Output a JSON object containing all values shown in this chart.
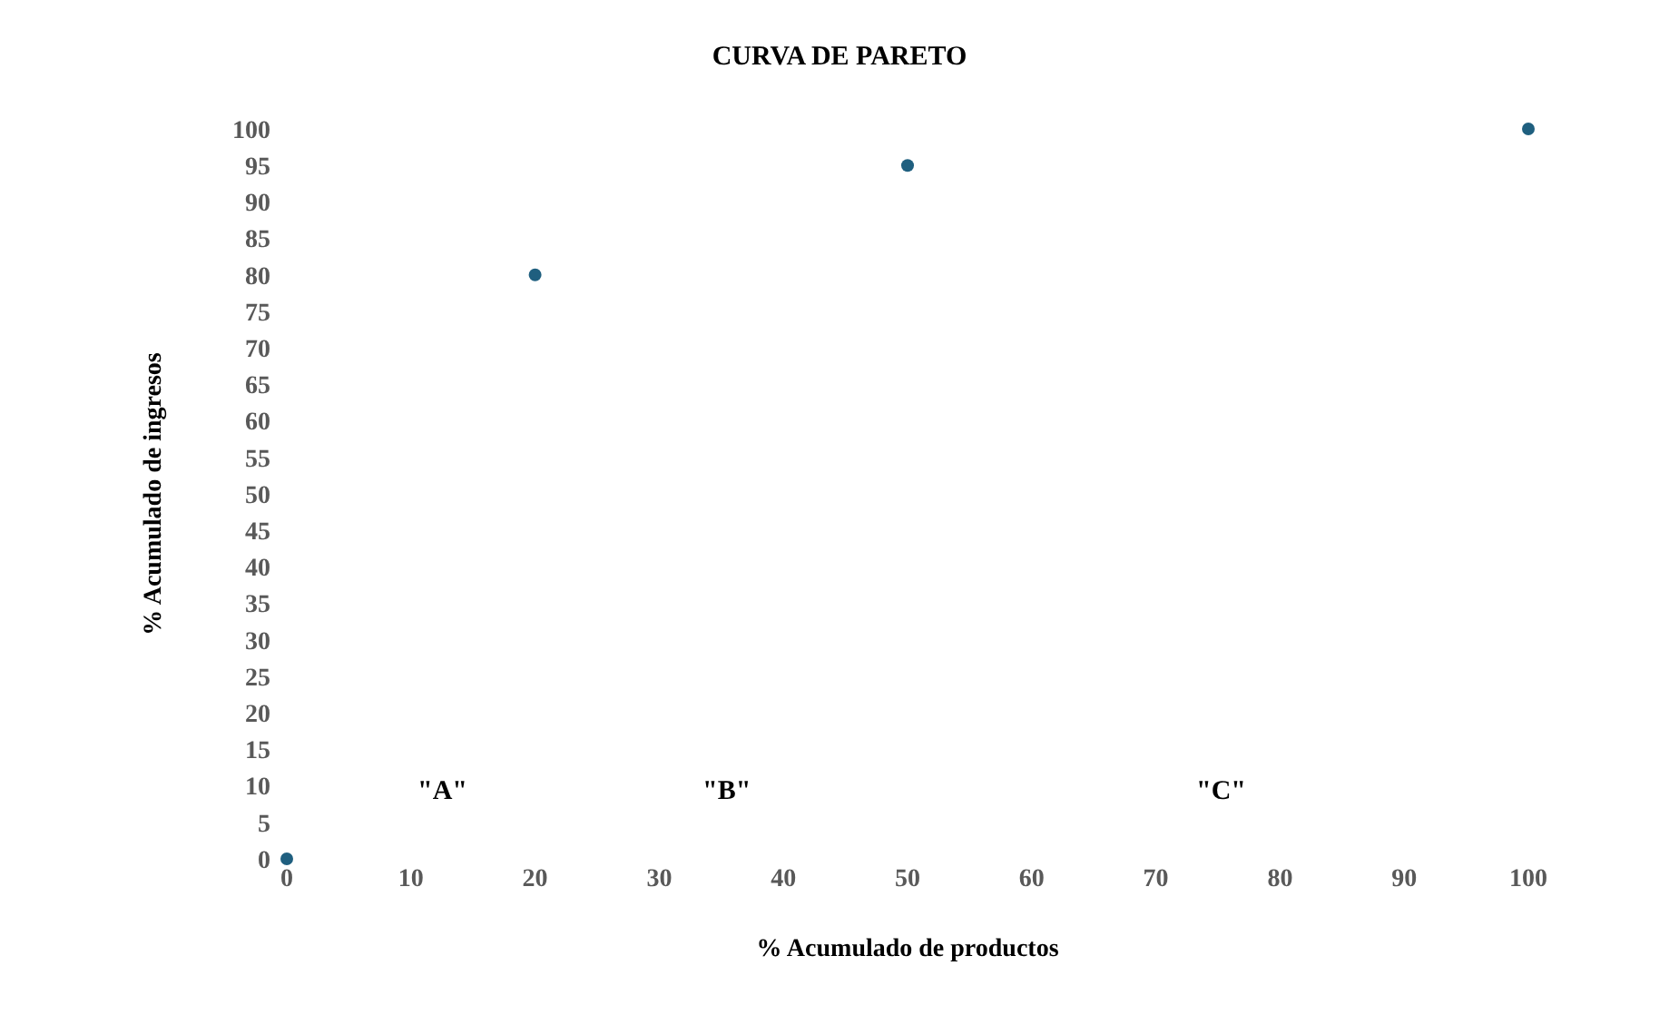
{
  "chart_data": {
    "type": "scatter",
    "title": "CURVA DE PARETO",
    "xlabel": "% Acumulado de productos",
    "ylabel": "% Acumulado de ingresos",
    "x": [
      0,
      20,
      50,
      100
    ],
    "series": [
      {
        "color": "#1f5f7f",
        "values": [
          0,
          80,
          95,
          100
        ]
      }
    ],
    "xlim": [
      0,
      100
    ],
    "xticks": [
      0,
      10,
      20,
      30,
      40,
      50,
      60,
      70,
      80,
      90,
      100
    ],
    "ylim": [
      0,
      100
    ],
    "yticks": [
      0,
      5,
      10,
      15,
      20,
      25,
      30,
      35,
      40,
      45,
      50,
      55,
      60,
      65,
      70,
      75,
      80,
      85,
      90,
      95,
      100
    ],
    "marker": "circle",
    "annotations": [
      "\"A\"",
      "\"B\"",
      "\"C\""
    ]
  }
}
